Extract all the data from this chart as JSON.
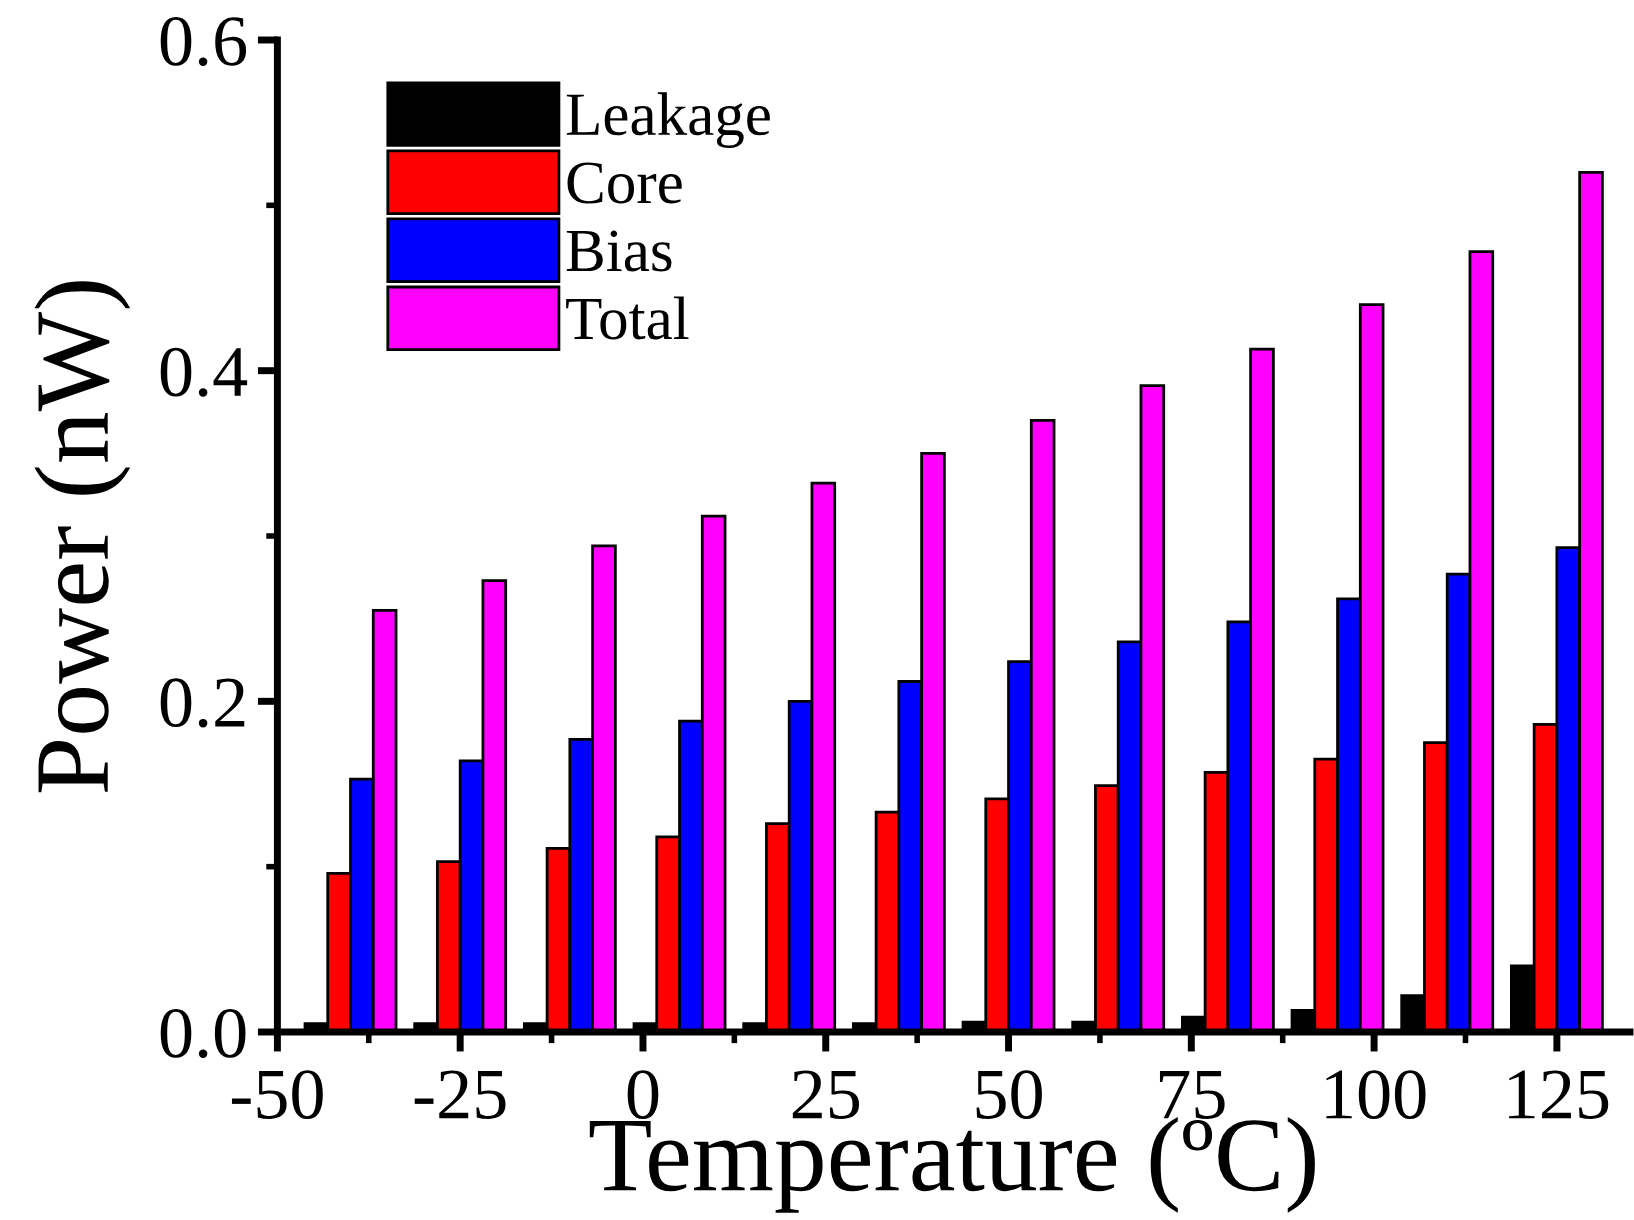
{
  "chart_data": {
    "type": "bar",
    "xlabel": "Temperature (ºC)",
    "ylabel": "Power (nW)",
    "x": [
      -40,
      -25,
      -10,
      5,
      20,
      35,
      50,
      65,
      80,
      95,
      110,
      125
    ],
    "series": [
      {
        "name": "Leakage",
        "color": "#000000",
        "values": [
          0.005,
          0.005,
          0.005,
          0.005,
          0.005,
          0.005,
          0.006,
          0.006,
          0.009,
          0.013,
          0.022,
          0.04
        ]
      },
      {
        "name": "Core",
        "color": "#ff0000",
        "values": [
          0.096,
          0.103,
          0.111,
          0.118,
          0.126,
          0.133,
          0.141,
          0.149,
          0.157,
          0.165,
          0.175,
          0.186
        ]
      },
      {
        "name": "Bias",
        "color": "#0000ff",
        "values": [
          0.153,
          0.164,
          0.177,
          0.188,
          0.2,
          0.212,
          0.224,
          0.236,
          0.248,
          0.262,
          0.277,
          0.293
        ]
      },
      {
        "name": "Total",
        "color": "#ff00ff",
        "values": [
          0.255,
          0.273,
          0.294,
          0.312,
          0.332,
          0.35,
          0.37,
          0.391,
          0.413,
          0.44,
          0.472,
          0.52
        ]
      }
    ],
    "xlim": [
      -50,
      135
    ],
    "xticks": [
      -50,
      {
        "value": -37.5,
        "label": null
      },
      -25,
      {
        "value": -12.5,
        "label": null
      },
      0,
      {
        "value": 12.5,
        "label": null
      },
      25,
      {
        "value": 37.5,
        "label": null
      },
      50,
      {
        "value": 62.5,
        "label": null
      },
      75,
      {
        "value": 87.5,
        "label": null
      },
      100,
      {
        "value": 112.5,
        "label": null
      },
      125
    ],
    "ylim": [
      0,
      0.6
    ],
    "yticks": [
      {
        "value": 0,
        "label": "0.0"
      },
      {
        "value": 0.1,
        "label": null
      },
      {
        "value": 0.2,
        "label": "0.2"
      },
      {
        "value": 0.3,
        "label": null
      },
      {
        "value": 0.4,
        "label": "0.4"
      },
      {
        "value": 0.5,
        "label": null
      },
      {
        "value": 0.6,
        "label": "0.6"
      }
    ],
    "grid": false,
    "legend": "top left"
  }
}
